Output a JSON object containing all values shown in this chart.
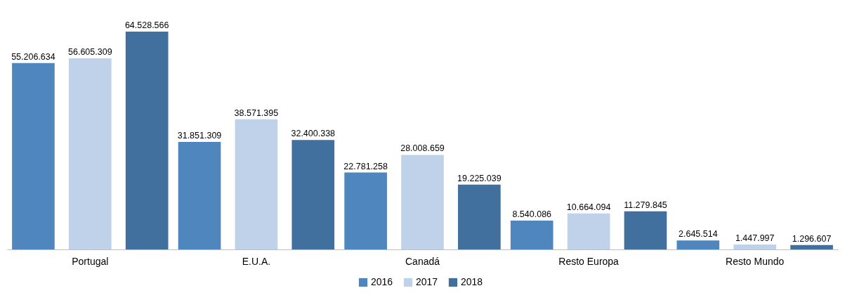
{
  "chart_data": {
    "type": "bar",
    "categories": [
      "Portugal",
      "E.U.A.",
      "Canadá",
      "Resto Europa",
      "Resto Mundo"
    ],
    "series": [
      {
        "name": "2016",
        "color": "#4f86be",
        "values": [
          55206634,
          31851309,
          22781258,
          8540086,
          2645514
        ],
        "value_labels": [
          "55.206.634",
          "31.851.309",
          "22.781.258",
          "8.540.086",
          "2.645.514"
        ]
      },
      {
        "name": "2017",
        "color": "#bfd2ea",
        "values": [
          56605309,
          38571395,
          28008659,
          10664094,
          1447997
        ],
        "value_labels": [
          "56.605.309",
          "38.571.395",
          "28.008.659",
          "10.664.094",
          "1.447.997"
        ]
      },
      {
        "name": "2018",
        "color": "#41709f",
        "values": [
          64528566,
          32400338,
          19225039,
          11279845,
          1296607
        ],
        "value_labels": [
          "64.528.566",
          "32.400.338",
          "19.225.039",
          "11.279.845",
          "1.296.607"
        ]
      }
    ],
    "legend": "bottom",
    "grid": false
  }
}
